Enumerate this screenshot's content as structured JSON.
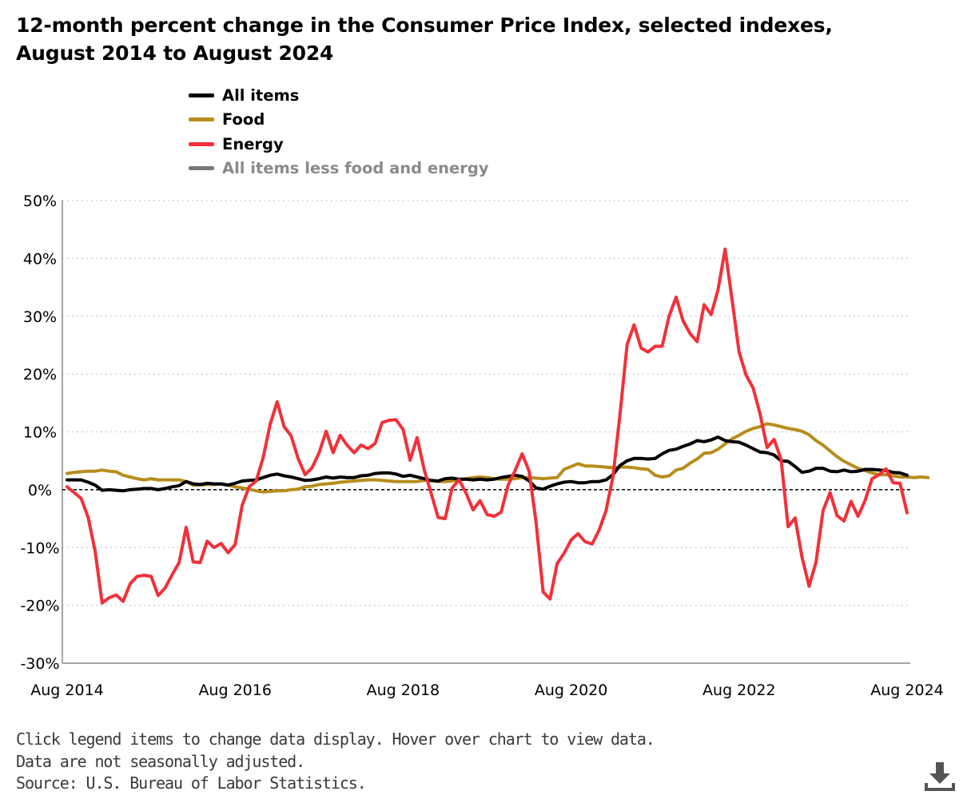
{
  "title": "12-month percent change in the Consumer Price Index, selected indexes, August 2014 to August 2024",
  "notes": [
    "Click legend items to change data display. Hover over chart to view data.",
    "Data are not seasonally adjusted.",
    "Source: U.S. Bureau of Labor Statistics."
  ],
  "icons": {
    "download": "download-icon"
  },
  "colors": {
    "all_items": "#000000",
    "food": "#b78d1c",
    "energy": "#f2303a",
    "core": "#767676"
  },
  "chart_data": {
    "type": "line",
    "title": "12-month percent change in the Consumer Price Index, selected indexes, August 2014 to August 2024",
    "xlabel": "",
    "ylabel": "",
    "x_range": [
      "2014-08",
      "2024-08"
    ],
    "x_ticks": [
      "Aug 2014",
      "Aug 2016",
      "Aug 2018",
      "Aug 2020",
      "Aug 2022",
      "Aug 2024"
    ],
    "ylim": [
      -30,
      50
    ],
    "y_ticks": [
      "50%",
      "40%",
      "30%",
      "20%",
      "10%",
      "0%",
      "-10%",
      "-20%",
      "-30%"
    ],
    "y_tick_values": [
      50,
      40,
      30,
      20,
      10,
      0,
      -10,
      -20,
      -30
    ],
    "reference_line": 0,
    "grid": "horizontal dotted",
    "legend_position": "top-left",
    "legend": [
      {
        "name": "All items",
        "color": "#000000",
        "active": true
      },
      {
        "name": "Food",
        "color": "#b78d1c",
        "active": true
      },
      {
        "name": "Energy",
        "color": "#f2303a",
        "active": true
      },
      {
        "name": "All items less food and energy",
        "color": "#767676",
        "active": false
      }
    ],
    "series": [
      {
        "name": "All items",
        "color": "#000000",
        "start": "2014-08",
        "values": [
          1.7,
          1.7,
          1.7,
          1.3,
          0.8,
          -0.1,
          0.0,
          -0.1,
          -0.2,
          0.0,
          0.1,
          0.2,
          0.2,
          0.0,
          0.2,
          0.5,
          0.7,
          1.4,
          1.0,
          0.9,
          1.1,
          1.0,
          1.0,
          0.8,
          1.1,
          1.5,
          1.6,
          1.7,
          2.1,
          2.5,
          2.7,
          2.4,
          2.2,
          1.9,
          1.6,
          1.7,
          1.9,
          2.2,
          2.0,
          2.2,
          2.1,
          2.1,
          2.4,
          2.5,
          2.8,
          2.9,
          2.9,
          2.7,
          2.3,
          2.5,
          2.2,
          1.9,
          1.6,
          1.5,
          1.9,
          2.0,
          1.8,
          1.8,
          1.7,
          1.8,
          1.7,
          1.8,
          2.1,
          2.3,
          2.5,
          2.3,
          1.5,
          0.3,
          0.1,
          0.6,
          1.0,
          1.3,
          1.4,
          1.2,
          1.2,
          1.4,
          1.4,
          1.7,
          2.6,
          4.2,
          5.0,
          5.4,
          5.4,
          5.3,
          5.4,
          6.2,
          6.8,
          7.0,
          7.5,
          7.9,
          8.5,
          8.3,
          8.6,
          9.1,
          8.5,
          8.3,
          8.2,
          7.7,
          7.1,
          6.5,
          6.4,
          6.0,
          5.0,
          4.9,
          4.0,
          3.0,
          3.2,
          3.7,
          3.7,
          3.2,
          3.1,
          3.4,
          3.1,
          3.2,
          3.5,
          3.5,
          3.4,
          3.3,
          3.0,
          2.9,
          2.5
        ]
      },
      {
        "name": "Food",
        "color": "#b78d1c",
        "start": "2014-08",
        "values": [
          2.8,
          3.0,
          3.1,
          3.2,
          3.2,
          3.4,
          3.2,
          3.1,
          2.5,
          2.2,
          1.9,
          1.7,
          1.9,
          1.7,
          1.7,
          1.7,
          1.7,
          1.4,
          0.8,
          0.8,
          0.9,
          0.9,
          1.0,
          0.8,
          0.5,
          0.3,
          0.1,
          -0.2,
          -0.4,
          -0.3,
          -0.2,
          -0.2,
          0.0,
          0.1,
          0.5,
          0.6,
          0.9,
          1.0,
          1.1,
          1.3,
          1.4,
          1.5,
          1.6,
          1.7,
          1.7,
          1.6,
          1.5,
          1.4,
          1.4,
          1.4,
          1.4,
          1.6,
          1.6,
          1.4,
          1.4,
          1.5,
          1.7,
          1.9,
          2.1,
          2.2,
          2.1,
          1.9,
          1.8,
          1.8,
          1.9,
          2.1,
          2.1,
          2.0,
          1.9,
          2.0,
          2.1,
          3.5,
          4.0,
          4.5,
          4.1,
          4.1,
          4.0,
          3.9,
          3.8,
          3.9,
          3.9,
          3.8,
          3.6,
          3.5,
          2.5,
          2.2,
          2.4,
          3.4,
          3.7,
          4.6,
          5.3,
          6.3,
          6.4,
          7.0,
          7.9,
          8.8,
          9.4,
          10.1,
          10.6,
          10.9,
          11.4,
          11.2,
          10.9,
          10.6,
          10.4,
          10.1,
          9.5,
          8.5,
          7.7,
          6.7,
          5.7,
          4.9,
          4.3,
          3.7,
          3.3,
          2.9,
          2.6,
          2.6,
          2.4,
          2.2,
          2.2,
          2.1,
          2.2,
          2.1
        ]
      },
      {
        "name": "Energy",
        "color": "#f2303a",
        "start": "2014-08",
        "values": [
          0.5,
          -0.5,
          -1.5,
          -4.8,
          -10.6,
          -19.6,
          -18.7,
          -18.2,
          -19.3,
          -16.3,
          -15.0,
          -14.8,
          -15.0,
          -18.3,
          -17.0,
          -14.7,
          -12.6,
          -6.5,
          -12.5,
          -12.6,
          -8.9,
          -10.0,
          -9.3,
          -10.9,
          -9.5,
          -2.7,
          0.5,
          1.5,
          5.5,
          11.3,
          15.2,
          10.9,
          9.3,
          5.4,
          2.6,
          3.8,
          6.4,
          10.1,
          6.4,
          9.4,
          7.7,
          6.4,
          7.7,
          7.1,
          8.0,
          11.6,
          12.0,
          12.1,
          10.4,
          5.1,
          9.0,
          3.5,
          -0.6,
          -4.8,
          -5.0,
          0.3,
          1.7,
          -0.6,
          -3.5,
          -1.9,
          -4.3,
          -4.6,
          -3.9,
          0.8,
          3.3,
          6.2,
          3.2,
          -5.7,
          -17.7,
          -18.9,
          -12.8,
          -11.0,
          -8.7,
          -7.6,
          -9.0,
          -9.4,
          -7.0,
          -3.6,
          2.4,
          13.2,
          25.1,
          28.5,
          24.5,
          23.8,
          24.8,
          24.8,
          30.0,
          33.3,
          29.2,
          27.0,
          25.6,
          32.0,
          30.3,
          34.6,
          41.6,
          32.9,
          23.8,
          19.8,
          17.6,
          13.1,
          7.3,
          8.7,
          5.2,
          -6.4,
          -4.9,
          -11.7,
          -16.7,
          -12.5,
          -3.6,
          -0.5,
          -4.5,
          -5.4,
          -2.0,
          -4.6,
          -1.9,
          1.9,
          2.6,
          3.6,
          1.2,
          1.1,
          -4.0
        ]
      }
    ]
  }
}
